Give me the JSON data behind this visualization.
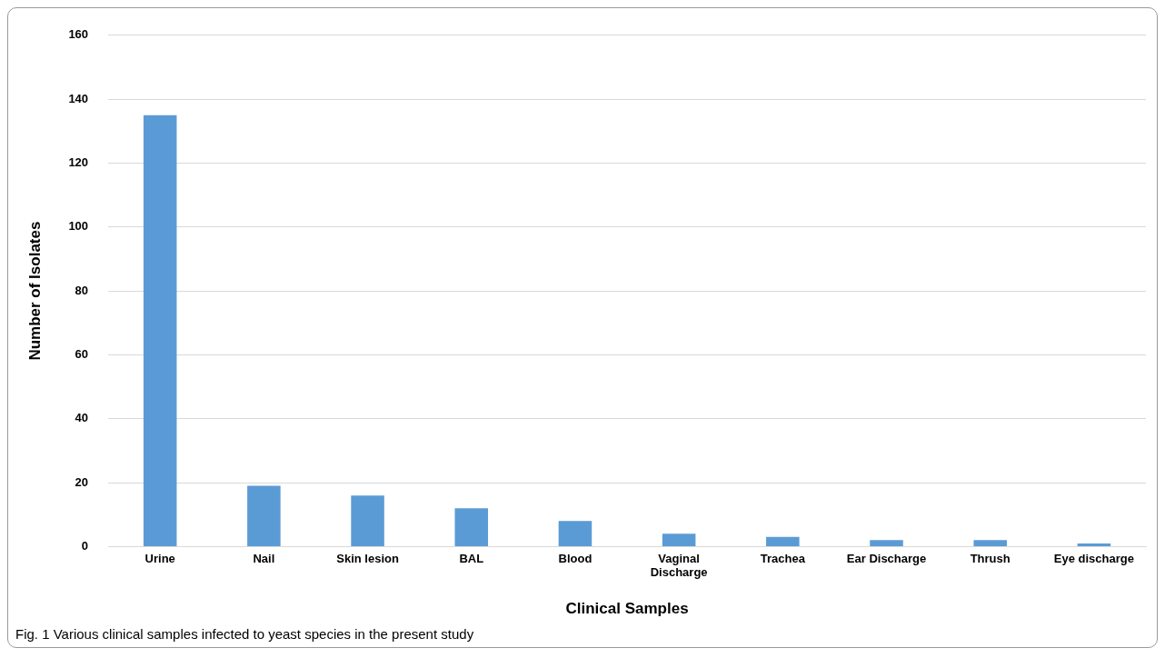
{
  "chart_data": {
    "type": "bar",
    "xlabel": "Clinical Samples",
    "ylabel": "Number of Isolates",
    "categories": [
      "Urine",
      "Nail",
      "Skin lesion",
      "BAL",
      "Blood",
      "Vaginal Discharge",
      "Trachea",
      "Ear Discharge",
      "Thrush",
      "Eye discharge"
    ],
    "values": [
      135,
      19,
      16,
      12,
      8,
      4,
      3,
      2,
      2,
      1
    ],
    "color": "#5b9bd5",
    "ylim": [
      0,
      160
    ],
    "yticks": [
      0,
      20,
      40,
      60,
      80,
      100,
      120,
      140,
      160
    ],
    "grid": "y",
    "legend": false,
    "annotations": [
      "Fig. 1  Various clinical samples infected to yeast species in the present study"
    ]
  }
}
